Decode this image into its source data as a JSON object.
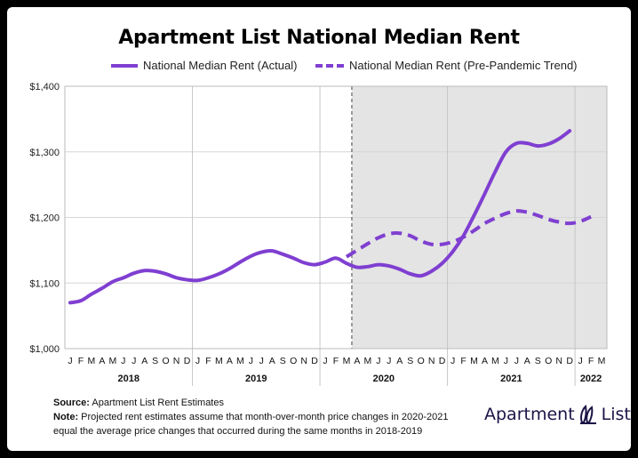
{
  "chart_data": {
    "type": "line",
    "title": "Apartment List National Median Rent",
    "ylim": [
      1000,
      1400
    ],
    "yticks": [
      1000,
      1100,
      1200,
      1300,
      1400
    ],
    "ytick_labels": [
      "$1,000",
      "$1,100",
      "$1,200",
      "$1,300",
      "$1,400"
    ],
    "month_labels": [
      "J",
      "F",
      "M",
      "A",
      "M",
      "J",
      "J",
      "A",
      "S",
      "O",
      "N",
      "D",
      "J",
      "F",
      "M",
      "A",
      "M",
      "J",
      "J",
      "A",
      "S",
      "O",
      "N",
      "D",
      "J",
      "F",
      "M",
      "A",
      "M",
      "J",
      "J",
      "A",
      "S",
      "O",
      "N",
      "D",
      "J",
      "F",
      "M",
      "A",
      "M",
      "J",
      "J",
      "A",
      "S",
      "O",
      "N",
      "D",
      "J",
      "F",
      "M"
    ],
    "year_labels": [
      "2018",
      "2019",
      "2020",
      "2021",
      "2022"
    ],
    "projection_start_index": 27,
    "color": "#7f3fd1",
    "shade_color": "#e4e4e4",
    "legend_position": "top",
    "series": [
      {
        "name": "National Median Rent (Actual)",
        "style": "solid",
        "start_index": 0,
        "values": [
          1070,
          1073,
          1083,
          1092,
          1102,
          1108,
          1115,
          1119,
          1118,
          1114,
          1108,
          1105,
          1104,
          1108,
          1114,
          1122,
          1132,
          1141,
          1147,
          1149,
          1144,
          1138,
          1131,
          1128,
          1132,
          1138,
          1130,
          1124,
          1125,
          1128,
          1126,
          1121,
          1114,
          1111,
          1118,
          1130,
          1148,
          1172,
          1203,
          1236,
          1270,
          1300,
          1313,
          1313,
          1309,
          1312,
          1320,
          1332
        ]
      },
      {
        "name": "National Median Rent (Pre-Pandemic Trend)",
        "style": "dashed",
        "start_index": 26,
        "values": [
          1140,
          1150,
          1160,
          1169,
          1175,
          1176,
          1172,
          1164,
          1159,
          1159,
          1163,
          1170,
          1180,
          1191,
          1199,
          1206,
          1210,
          1208,
          1203,
          1197,
          1193,
          1191,
          1194,
          1201
        ]
      }
    ]
  },
  "notes": {
    "source_label": "Source:",
    "source_text": "Apartment List Rent Estimates",
    "note_label": "Note:",
    "note_line1": "Projected rent estimates assume that month-over-month price changes in 2020-2021",
    "note_line2": "equal the average price changes that occurred during the same months in 2018-2019"
  },
  "brand": {
    "name_a": "Apartment",
    "name_b": "List"
  }
}
